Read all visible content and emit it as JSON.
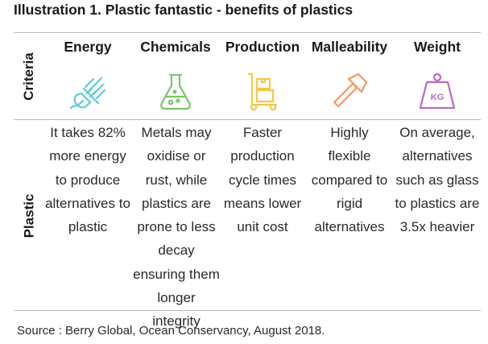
{
  "title": "Illustration 1. Plastic fantastic - benefits of plastics",
  "row_labels": {
    "criteria": "Criteria",
    "plastic": "Plastic"
  },
  "columns": [
    {
      "name": "Energy",
      "icon": "plug-icon",
      "icon_color": "#5ecbd4",
      "text": "It takes 82% more energy to produce alternatives to plastic"
    },
    {
      "name": "Chemicals",
      "icon": "flask-icon",
      "icon_color": "#7dc46a",
      "text": "Metals may oxidise or rust, while plastics are prone to less decay ensuring them longer integrity"
    },
    {
      "name": "Production",
      "icon": "hand-truck-icon",
      "icon_color": "#f2c94c",
      "text": "Faster production cycle times means lower unit cost"
    },
    {
      "name": "Malleability",
      "icon": "hammer-icon",
      "icon_color": "#f49a5c",
      "text": "Highly flexible compared to rigid alternatives"
    },
    {
      "name": "Weight",
      "icon": "kg-weight-icon",
      "icon_color": "#b76bc6",
      "icon_text": "KG",
      "text": "On average, alternatives such as glass to plastics are 3.5x heavier"
    }
  ],
  "source": "Source : Berry Global, Ocean Conservancy, August 2018."
}
